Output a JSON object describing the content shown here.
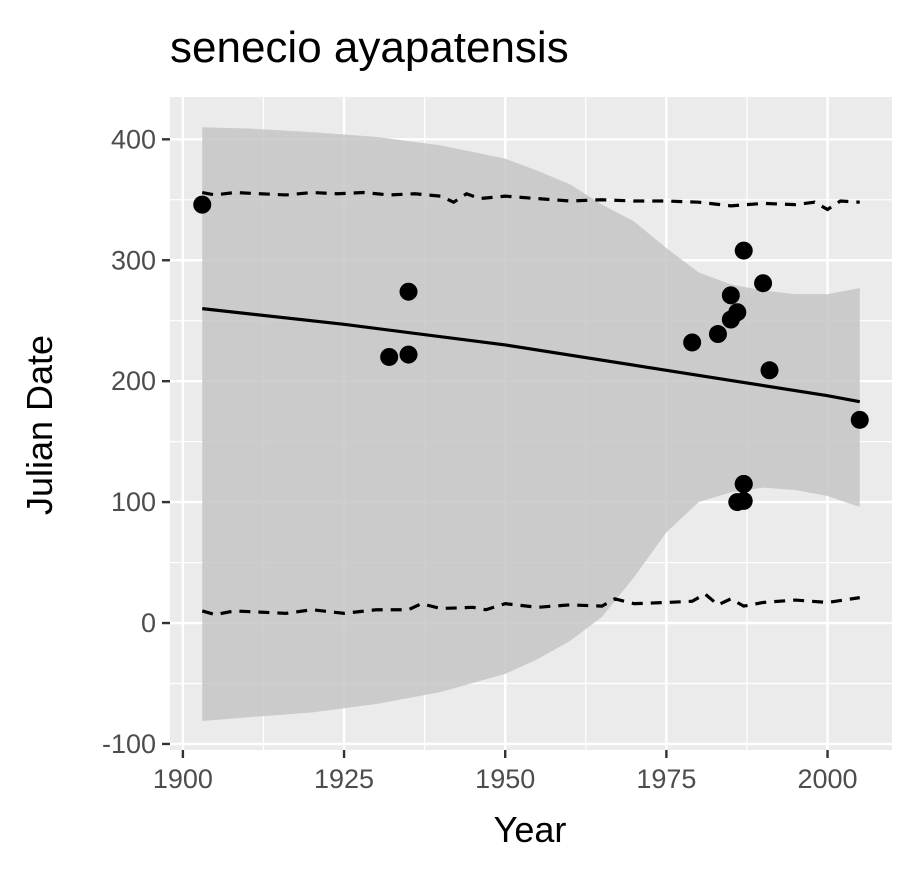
{
  "chart_data": {
    "type": "scatter",
    "title": "senecio ayapatensis",
    "xlabel": "Year",
    "ylabel": "Julian Date",
    "xlim": [
      1898,
      2010
    ],
    "ylim": [
      -105,
      435
    ],
    "x_ticks": [
      1900,
      1925,
      1950,
      1975,
      2000
    ],
    "y_ticks": [
      -100,
      0,
      100,
      200,
      300,
      400
    ],
    "x_tick_labels": [
      "1900",
      "1925",
      "1950",
      "1975",
      "2000"
    ],
    "y_tick_labels": [
      "-100",
      "0",
      "100",
      "200",
      "300",
      "400"
    ],
    "grid": true,
    "legend": "none",
    "colors": {
      "panel_background": "#ebebeb",
      "grid_major": "#ffffff",
      "ribbon": "#c6c6c6",
      "points": "#000000",
      "lines": "#000000"
    },
    "points": {
      "x": [
        1903,
        1932,
        1935,
        1935,
        1979,
        1983,
        1985,
        1985,
        1986,
        1986,
        1987,
        1987,
        1987,
        1987,
        1990,
        1991,
        2005
      ],
      "y": [
        346,
        220,
        222,
        274,
        232,
        239,
        251,
        271,
        257,
        100,
        308,
        115,
        101,
        115,
        281,
        209,
        168
      ]
    },
    "trend_line": {
      "x": [
        1903,
        1925,
        1950,
        1975,
        2000,
        2005
      ],
      "y": [
        260,
        247,
        230,
        209,
        188,
        183
      ]
    },
    "confidence_band": {
      "x": [
        1903,
        1910,
        1920,
        1930,
        1940,
        1950,
        1955,
        1960,
        1965,
        1970,
        1975,
        1980,
        1985,
        1990,
        1995,
        2000,
        2005
      ],
      "upper": [
        410,
        409,
        406,
        402,
        395,
        384,
        374,
        363,
        346,
        332,
        310,
        290,
        280,
        275,
        272,
        272,
        277
      ],
      "lower": [
        -81,
        -78,
        -74,
        -67,
        -57,
        -42,
        -30,
        -15,
        5,
        38,
        75,
        100,
        108,
        112,
        110,
        105,
        96
      ]
    },
    "upper_dashed": {
      "x": [
        1903,
        1905,
        1908,
        1912,
        1916,
        1920,
        1924,
        1928,
        1932,
        1936,
        1940,
        1942,
        1944,
        1946,
        1950,
        1955,
        1960,
        1965,
        1970,
        1975,
        1980,
        1985,
        1990,
        1995,
        1998,
        2000,
        2002,
        2005
      ],
      "y": [
        356,
        354,
        356,
        355,
        354,
        356,
        355,
        356,
        354,
        355,
        353,
        348,
        355,
        351,
        353,
        351,
        349,
        350,
        349,
        349,
        348,
        345,
        347,
        346,
        348,
        342,
        349,
        348
      ]
    },
    "lower_dashed": {
      "x": [
        1903,
        1905,
        1908,
        1912,
        1916,
        1920,
        1925,
        1930,
        1935,
        1937,
        1940,
        1945,
        1947,
        1950,
        1955,
        1960,
        1965,
        1967,
        1970,
        1975,
        1979,
        1981,
        1983,
        1985,
        1987,
        1990,
        1995,
        2000,
        2005
      ],
      "y": [
        10,
        7,
        10,
        9,
        8,
        11,
        8,
        11,
        11,
        16,
        12,
        13,
        11,
        16,
        13,
        15,
        14,
        20,
        16,
        17,
        18,
        24,
        15,
        20,
        14,
        17,
        19,
        17,
        21
      ]
    }
  }
}
